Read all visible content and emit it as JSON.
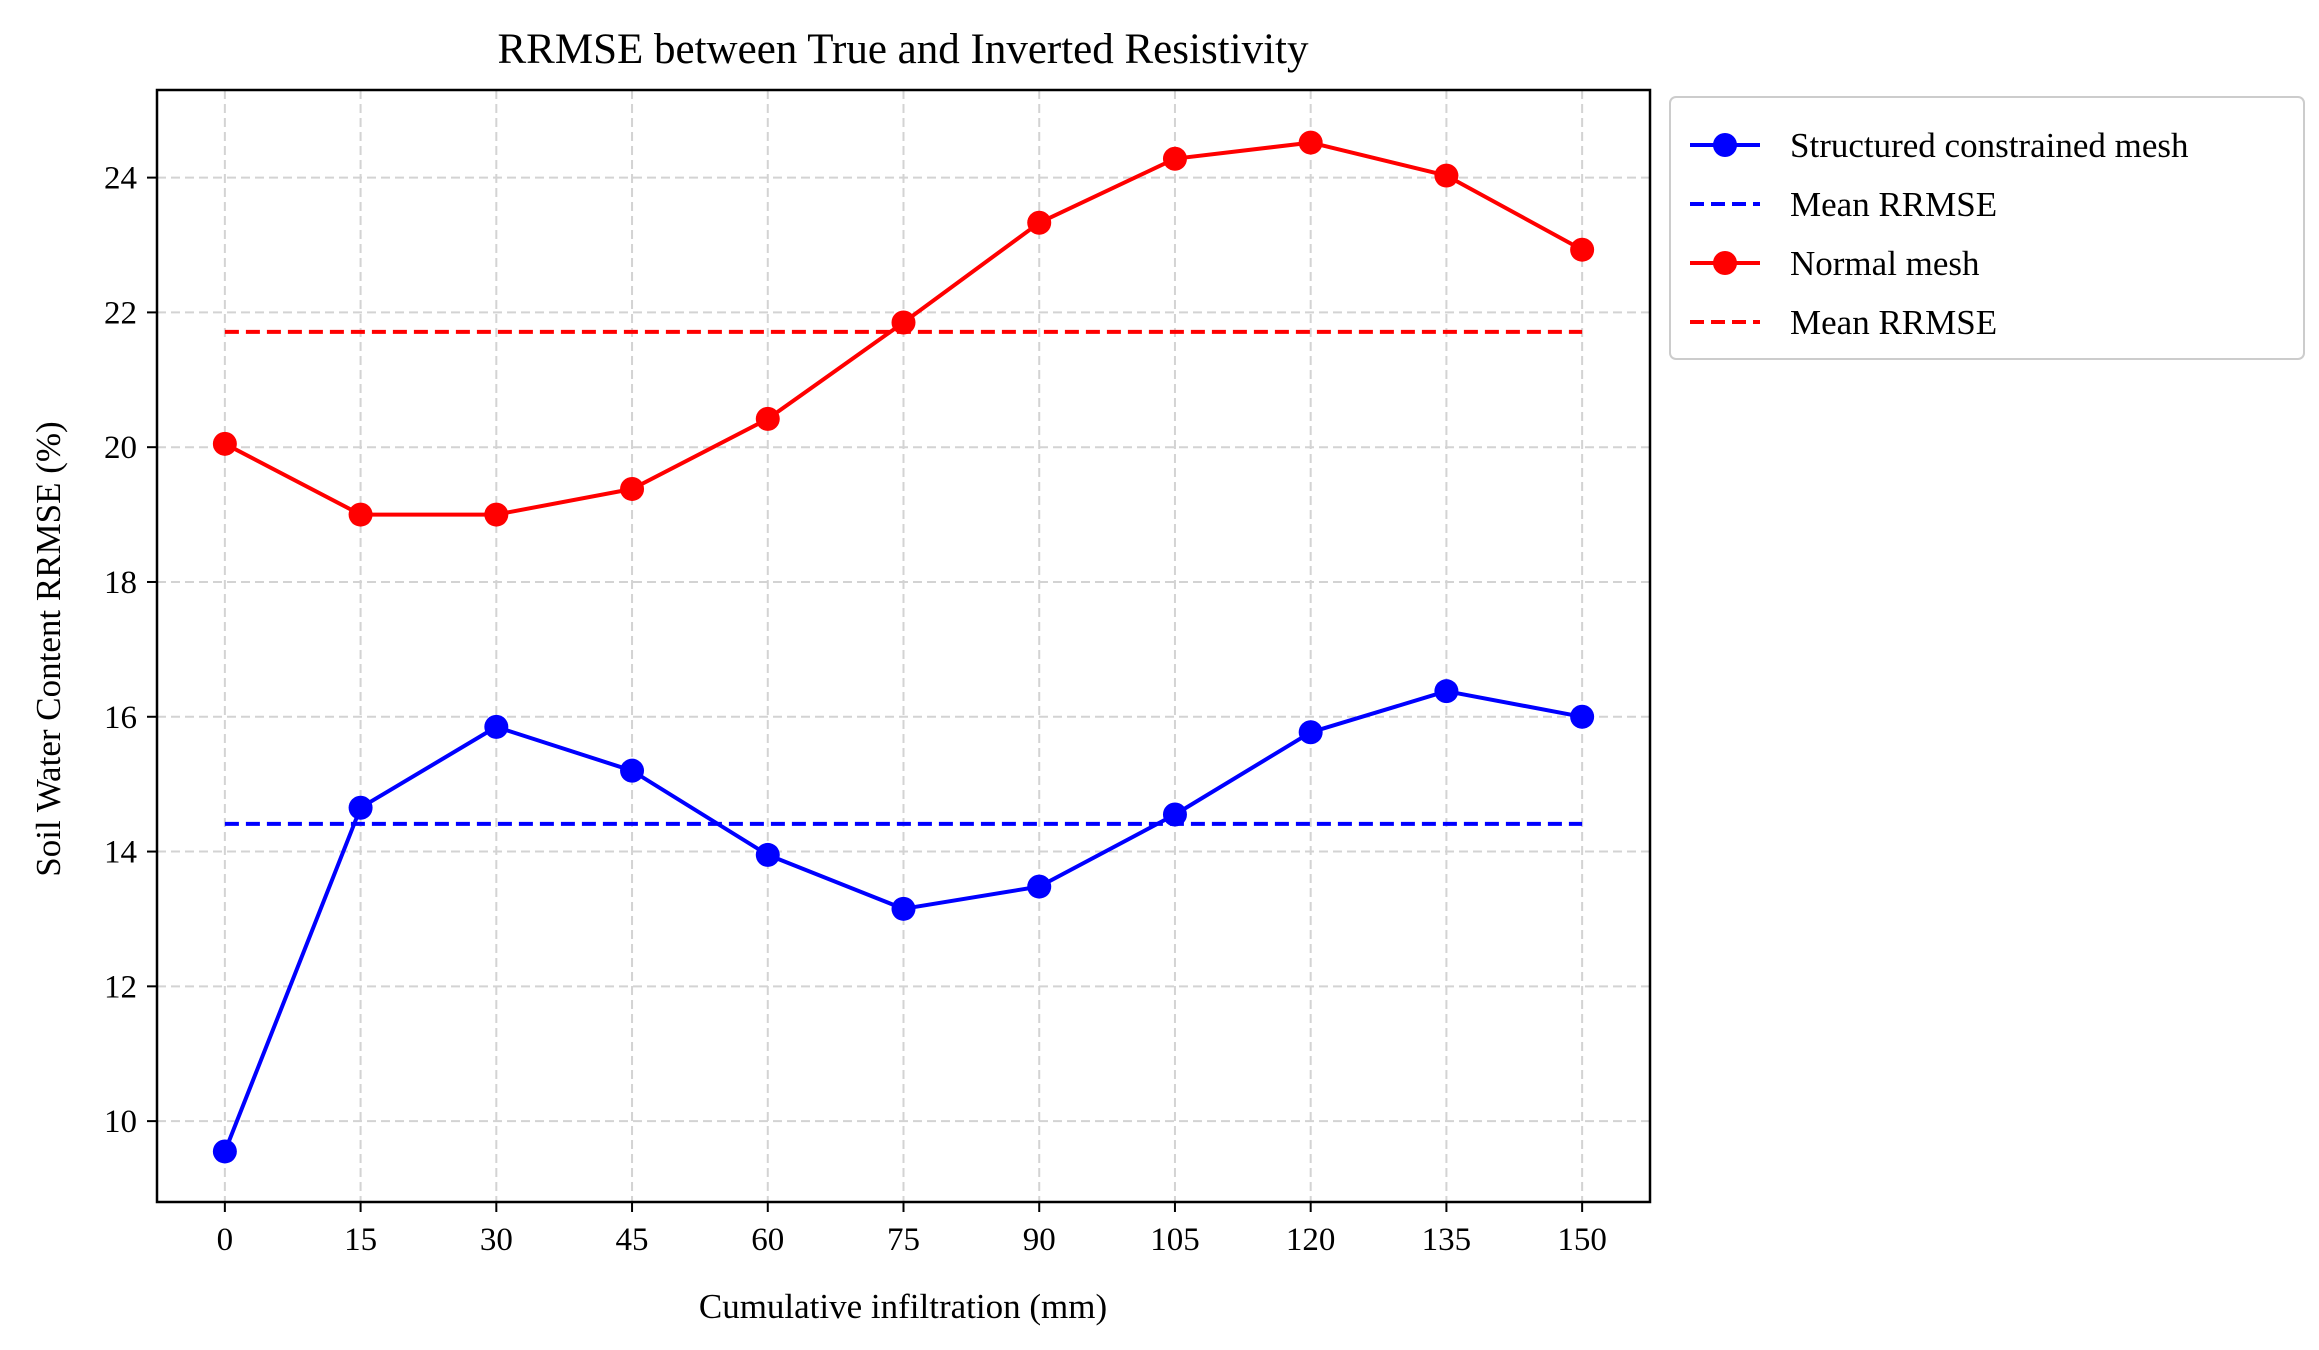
{
  "chart_data": {
    "type": "line",
    "title": "RRMSE between True and Inverted Resistivity",
    "xlabel": "Cumulative infiltration (mm)",
    "ylabel": "Soil Water Content RRMSE (%)",
    "x": [
      0,
      15,
      30,
      45,
      60,
      75,
      90,
      105,
      120,
      135,
      150
    ],
    "xticks": [
      "0",
      "15",
      "30",
      "45",
      "60",
      "75",
      "90",
      "105",
      "120",
      "135",
      "150"
    ],
    "yticks": [
      "10",
      "12",
      "14",
      "16",
      "18",
      "20",
      "22",
      "24"
    ],
    "xlim": [
      -7.5,
      157.5
    ],
    "ylim": [
      8.8,
      25.3
    ],
    "grid": true,
    "legend_position": "outside-top-right",
    "series": [
      {
        "name": "Structured constrained mesh",
        "color": "#0000ff",
        "style": "solid",
        "marker": "circle",
        "values": [
          9.55,
          14.65,
          15.85,
          15.2,
          13.95,
          13.15,
          13.48,
          14.55,
          15.77,
          16.38,
          16.0
        ]
      },
      {
        "name": "Mean RRMSE",
        "color": "#0000ff",
        "style": "dashed",
        "marker": "none",
        "values": [
          14.41,
          14.41,
          14.41,
          14.41,
          14.41,
          14.41,
          14.41,
          14.41,
          14.41,
          14.41,
          14.41
        ]
      },
      {
        "name": "Normal mesh",
        "color": "#ff0000",
        "style": "solid",
        "marker": "circle",
        "values": [
          20.05,
          19.0,
          19.0,
          19.38,
          20.42,
          21.85,
          23.33,
          24.28,
          24.52,
          24.03,
          22.93
        ]
      },
      {
        "name": "Mean RRMSE",
        "color": "#ff0000",
        "style": "dashed",
        "marker": "none",
        "values": [
          21.71,
          21.71,
          21.71,
          21.71,
          21.71,
          21.71,
          21.71,
          21.71,
          21.71,
          21.71,
          21.71
        ]
      }
    ]
  }
}
